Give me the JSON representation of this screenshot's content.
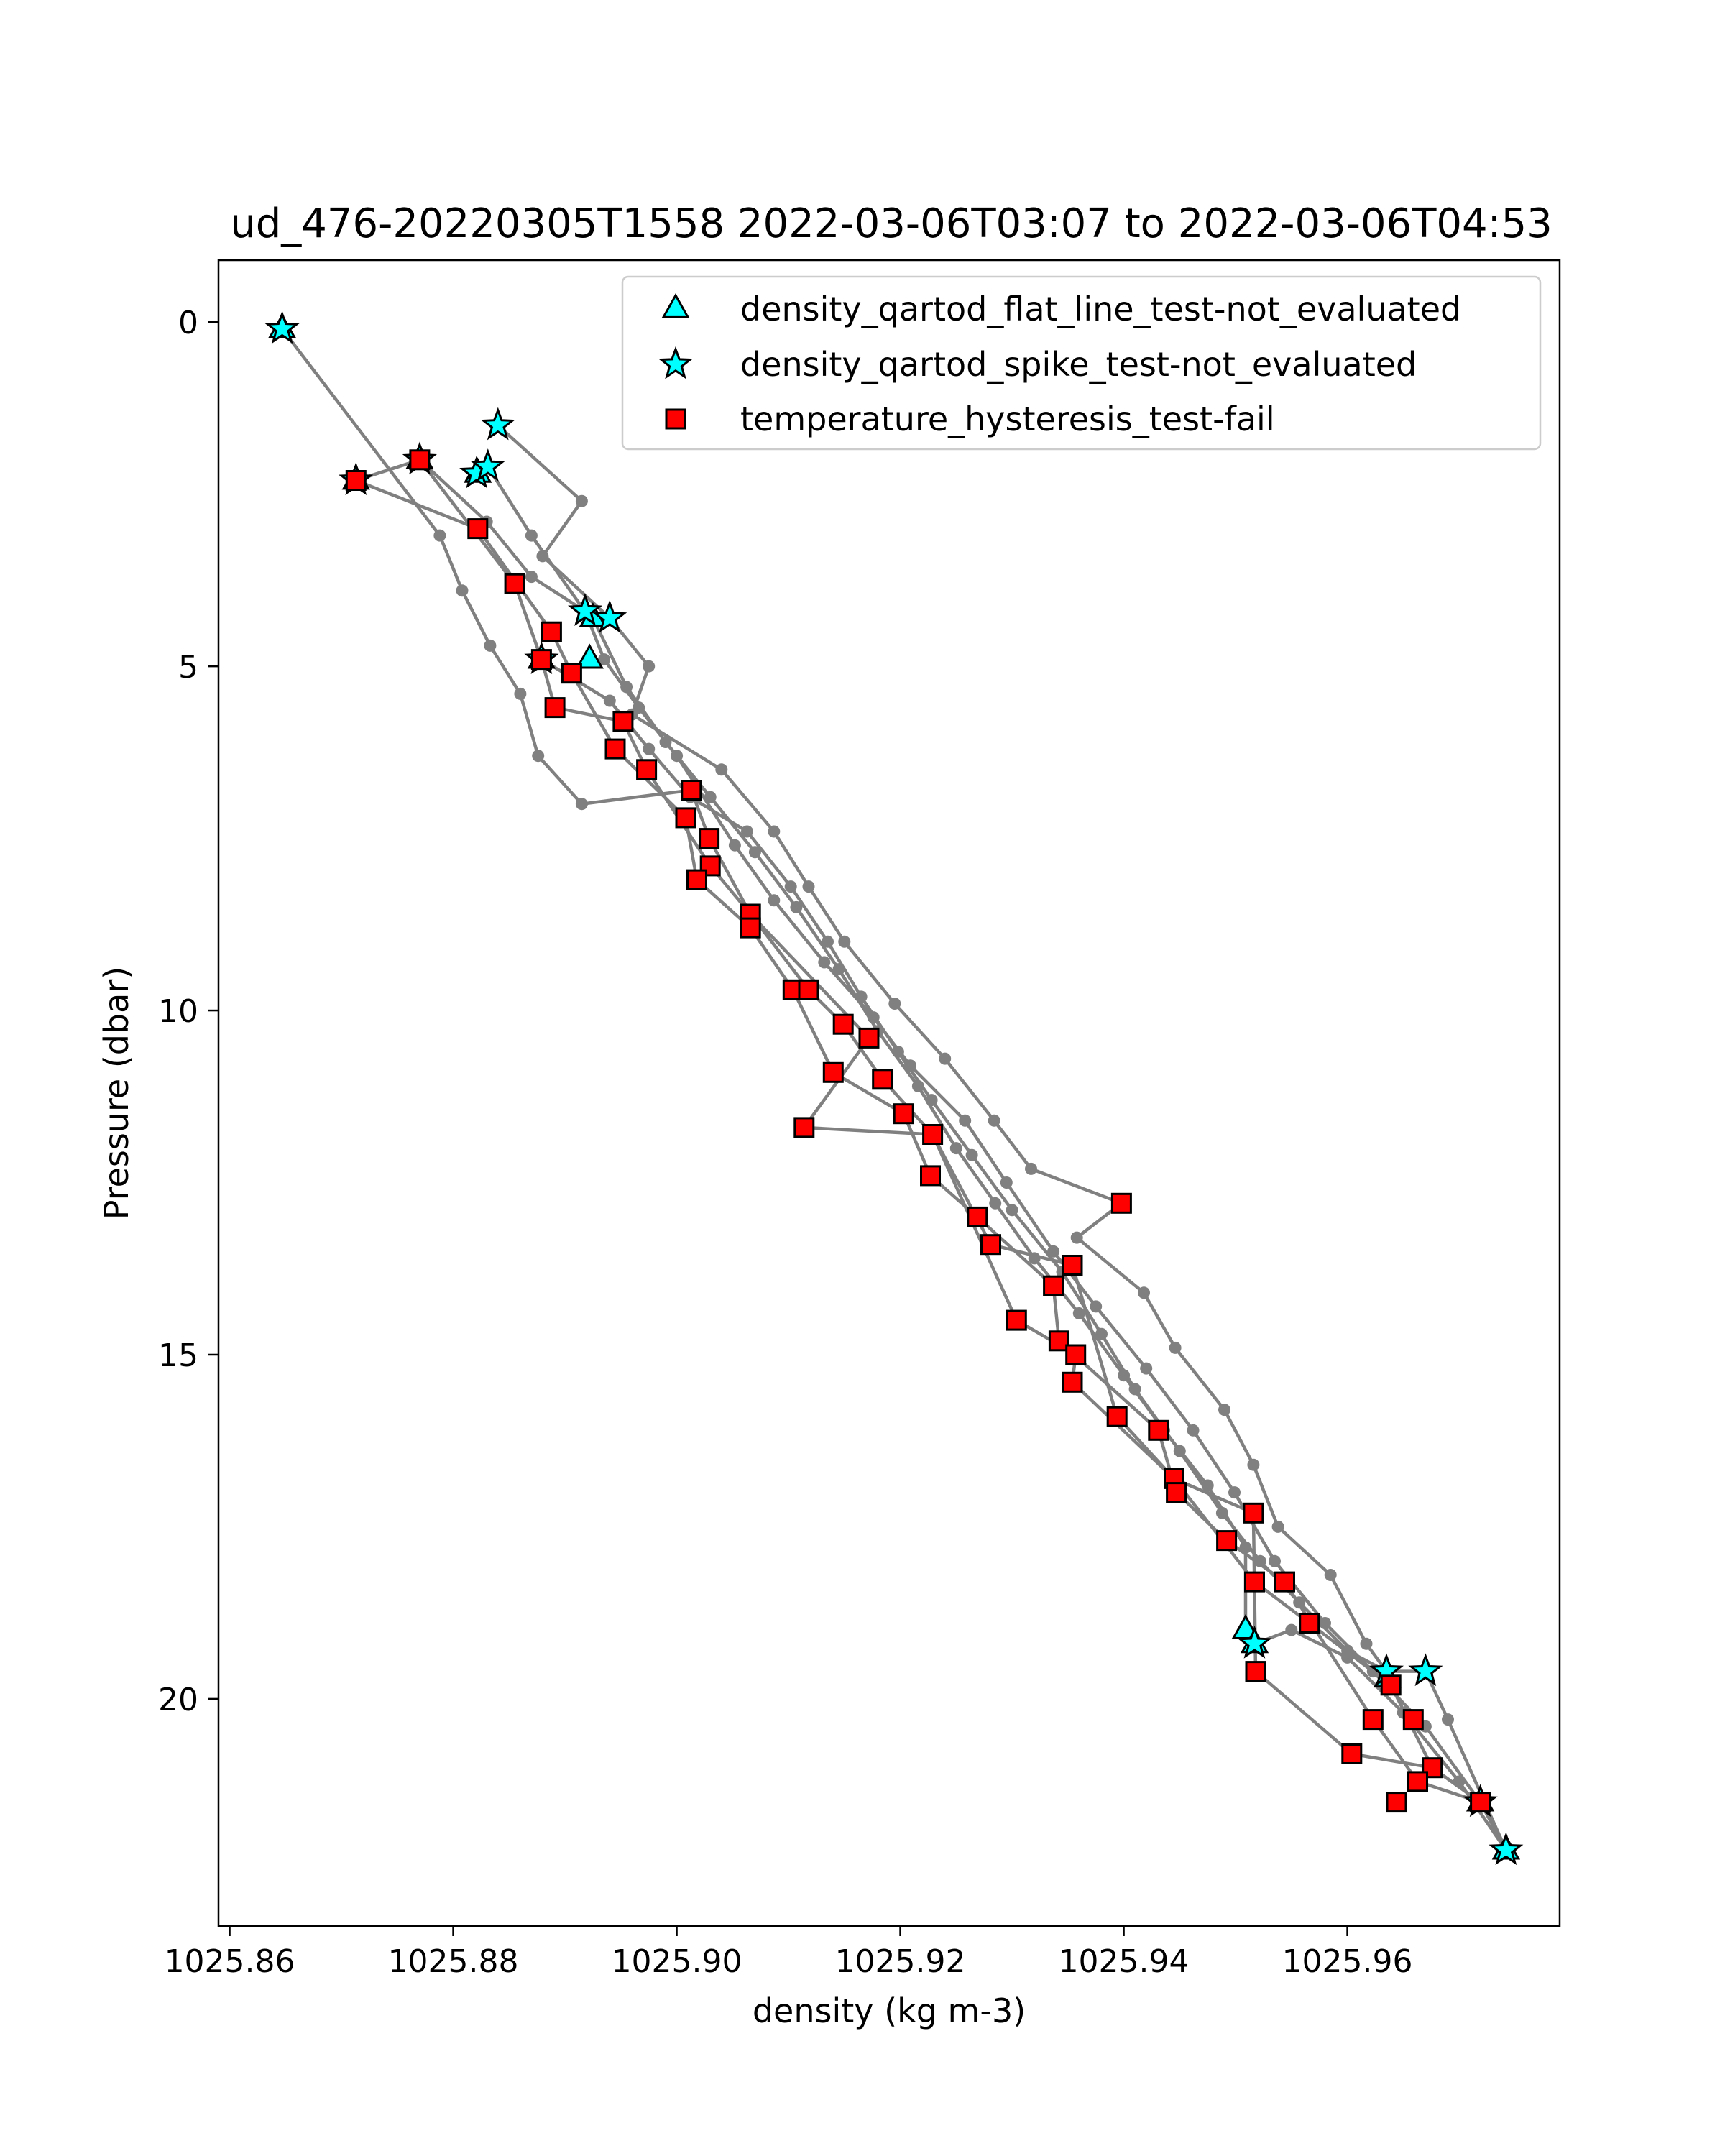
{
  "chart_data": {
    "type": "scatter",
    "title": "ud_476-20220305T1558 2022-03-06T03:07 to 2022-03-06T04:53",
    "xlabel": "density (kg m-3)",
    "ylabel": "Pressure (dbar)",
    "xlim": [
      1025.859,
      1025.979
    ],
    "ylim": [
      23.3,
      -0.9
    ],
    "y_inverted": true,
    "grid": false,
    "legend_position": "top-right",
    "x_ticks": [
      1025.86,
      1025.88,
      1025.9,
      1025.92,
      1025.94,
      1025.96
    ],
    "x_tick_labels": [
      "1025.86",
      "1025.88",
      "1025.90",
      "1025.92",
      "1025.94",
      "1025.96"
    ],
    "y_ticks": [
      0,
      5,
      10,
      15,
      20
    ],
    "y_tick_labels": [
      "0",
      "5",
      "10",
      "15",
      "20"
    ],
    "colors": {
      "line": "#808080",
      "marker_edge": "#000000",
      "flat_line": "#00FFFF",
      "spike": "#00FFFF",
      "hysteresis": "#FF0000"
    },
    "series": [
      {
        "name": "density_qartod_flat_line_test-not_evaluated",
        "marker": "triangle",
        "points": [
          [
            1025.8647,
            0.1
          ],
          [
            1025.8713,
            2.3
          ],
          [
            1025.877,
            2.0
          ],
          [
            1025.8822,
            2.2
          ],
          [
            1025.8879,
            4.9
          ],
          [
            1025.8922,
            4.9
          ],
          [
            1025.8925,
            4.3
          ],
          [
            1025.9509,
            19.0
          ],
          [
            1025.9517,
            19.2
          ],
          [
            1025.9636,
            19.7
          ],
          [
            1025.9719,
            21.5
          ],
          [
            1025.9742,
            22.2
          ]
        ]
      },
      {
        "name": "density_qartod_spike_test-not_evaluated",
        "marker": "star",
        "points": [
          [
            1025.8647,
            0.1
          ],
          [
            1025.884,
            1.5
          ],
          [
            1025.8713,
            2.3
          ],
          [
            1025.877,
            2.0
          ],
          [
            1025.8821,
            2.2
          ],
          [
            1025.8831,
            2.1
          ],
          [
            1025.8918,
            4.2
          ],
          [
            1025.894,
            4.3
          ],
          [
            1025.8879,
            4.9
          ],
          [
            1025.9517,
            19.2
          ],
          [
            1025.9635,
            19.6
          ],
          [
            1025.967,
            19.6
          ],
          [
            1025.9719,
            21.5
          ],
          [
            1025.9742,
            22.2
          ]
        ]
      },
      {
        "name": "temperature_hysteresis_test-fail",
        "marker": "square",
        "points": [
          [
            1025.8713,
            2.3
          ],
          [
            1025.877,
            2.0
          ],
          [
            1025.8822,
            3.0
          ],
          [
            1025.8855,
            3.8
          ],
          [
            1025.8888,
            4.5
          ],
          [
            1025.8879,
            4.9
          ],
          [
            1025.8906,
            5.1
          ],
          [
            1025.8891,
            5.6
          ],
          [
            1025.8952,
            5.8
          ],
          [
            1025.8945,
            6.2
          ],
          [
            1025.8973,
            6.5
          ],
          [
            1025.9013,
            6.8
          ],
          [
            1025.9008,
            7.2
          ],
          [
            1025.9029,
            7.5
          ],
          [
            1025.903,
            7.9
          ],
          [
            1025.9018,
            8.1
          ],
          [
            1025.9066,
            8.6
          ],
          [
            1025.9066,
            8.8
          ],
          [
            1025.9104,
            9.7
          ],
          [
            1025.9118,
            9.7
          ],
          [
            1025.9149,
            10.2
          ],
          [
            1025.9172,
            10.4
          ],
          [
            1025.914,
            10.9
          ],
          [
            1025.9184,
            11.0
          ],
          [
            1025.9203,
            11.5
          ],
          [
            1025.9229,
            11.8
          ],
          [
            1025.9114,
            11.7
          ],
          [
            1025.9227,
            12.4
          ],
          [
            1025.9269,
            13.0
          ],
          [
            1025.9281,
            13.4
          ],
          [
            1025.9398,
            12.8
          ],
          [
            1025.9354,
            13.7
          ],
          [
            1025.9337,
            14.0
          ],
          [
            1025.9304,
            14.5
          ],
          [
            1025.9342,
            14.8
          ],
          [
            1025.9357,
            15.0
          ],
          [
            1025.9354,
            15.4
          ],
          [
            1025.9394,
            15.9
          ],
          [
            1025.9431,
            16.1
          ],
          [
            1025.9445,
            16.8
          ],
          [
            1025.9447,
            17.0
          ],
          [
            1025.9492,
            17.7
          ],
          [
            1025.9516,
            17.3
          ],
          [
            1025.9544,
            18.3
          ],
          [
            1025.9517,
            18.3
          ],
          [
            1025.9566,
            18.9
          ],
          [
            1025.9518,
            19.6
          ],
          [
            1025.9639,
            19.8
          ],
          [
            1025.9623,
            20.3
          ],
          [
            1025.9659,
            20.3
          ],
          [
            1025.9604,
            20.8
          ],
          [
            1025.9676,
            21.0
          ],
          [
            1025.9663,
            21.2
          ],
          [
            1025.9644,
            21.5
          ],
          [
            1025.9719,
            21.5
          ]
        ]
      }
    ],
    "profiles": [
      [
        [
          1025.8647,
          0.1
        ],
        [
          1025.8788,
          3.1
        ],
        [
          1025.8808,
          3.9
        ],
        [
          1025.8833,
          4.7
        ],
        [
          1025.886,
          5.4
        ],
        [
          1025.8876,
          6.3
        ],
        [
          1025.8915,
          7.0
        ],
        [
          1025.9013,
          6.8
        ],
        [
          1025.9029,
          7.5
        ],
        [
          1025.9066,
          8.6
        ],
        [
          1025.9118,
          9.7
        ],
        [
          1025.9149,
          10.2
        ],
        [
          1025.9184,
          11.0
        ],
        [
          1025.9229,
          11.8
        ],
        [
          1025.9281,
          13.4
        ],
        [
          1025.9354,
          13.7
        ],
        [
          1025.9394,
          15.9
        ],
        [
          1025.9445,
          16.8
        ],
        [
          1025.9517,
          18.3
        ],
        [
          1025.9566,
          18.9
        ],
        [
          1025.9639,
          19.8
        ],
        [
          1025.9676,
          21.0
        ],
        [
          1025.9719,
          21.5
        ],
        [
          1025.9742,
          22.2
        ]
      ],
      [
        [
          1025.8713,
          2.3
        ],
        [
          1025.8822,
          3.0
        ],
        [
          1025.8888,
          4.5
        ],
        [
          1025.8906,
          5.1
        ],
        [
          1025.8945,
          6.2
        ],
        [
          1025.9008,
          7.2
        ],
        [
          1025.9018,
          8.1
        ],
        [
          1025.9066,
          8.8
        ],
        [
          1025.9104,
          9.7
        ],
        [
          1025.914,
          10.9
        ],
        [
          1025.9203,
          11.5
        ],
        [
          1025.9227,
          12.4
        ],
        [
          1025.9269,
          13.0
        ],
        [
          1025.9337,
          14.0
        ],
        [
          1025.9342,
          14.8
        ],
        [
          1025.9431,
          16.1
        ],
        [
          1025.9447,
          17.0
        ],
        [
          1025.9492,
          17.7
        ],
        [
          1025.9544,
          18.3
        ],
        [
          1025.9623,
          20.3
        ],
        [
          1025.9663,
          21.2
        ],
        [
          1025.9719,
          21.5
        ]
      ],
      [
        [
          1025.877,
          2.0
        ],
        [
          1025.8855,
          3.8
        ],
        [
          1025.8879,
          4.9
        ],
        [
          1025.8891,
          5.6
        ],
        [
          1025.8952,
          5.8
        ],
        [
          1025.8973,
          6.5
        ],
        [
          1025.903,
          7.9
        ],
        [
          1025.9066,
          8.6
        ],
        [
          1025.9172,
          10.4
        ],
        [
          1025.9114,
          11.7
        ],
        [
          1025.9229,
          11.8
        ],
        [
          1025.9304,
          14.5
        ],
        [
          1025.9357,
          15.0
        ],
        [
          1025.9354,
          15.4
        ],
        [
          1025.9445,
          16.8
        ],
        [
          1025.9516,
          17.3
        ],
        [
          1025.9518,
          19.6
        ],
        [
          1025.9604,
          20.8
        ],
        [
          1025.9676,
          21.0
        ],
        [
          1025.9719,
          21.5
        ]
      ],
      [
        [
          1025.8713,
          2.3
        ],
        [
          1025.877,
          2.0
        ],
        [
          1025.883,
          2.9
        ],
        [
          1025.887,
          3.7
        ],
        [
          1025.8918,
          4.2
        ],
        [
          1025.8935,
          4.9
        ],
        [
          1025.8966,
          5.6
        ],
        [
          1025.9,
          6.3
        ],
        [
          1025.9052,
          7.6
        ],
        [
          1025.9087,
          8.4
        ],
        [
          1025.9132,
          9.3
        ],
        [
          1025.9176,
          10.1
        ],
        [
          1025.9209,
          10.8
        ],
        [
          1025.9258,
          11.6
        ],
        [
          1025.9295,
          12.5
        ],
        [
          1025.9337,
          13.5
        ],
        [
          1025.9375,
          14.3
        ],
        [
          1025.942,
          15.2
        ],
        [
          1025.9462,
          16.1
        ],
        [
          1025.9499,
          17.0
        ],
        [
          1025.9535,
          18.0
        ],
        [
          1025.958,
          18.9
        ],
        [
          1025.9623,
          19.6
        ],
        [
          1025.967,
          20.4
        ],
        [
          1025.9719,
          21.5
        ]
      ],
      [
        [
          1025.884,
          1.5
        ],
        [
          1025.8915,
          2.6
        ],
        [
          1025.888,
          3.4
        ],
        [
          1025.894,
          4.3
        ],
        [
          1025.8975,
          5.0
        ],
        [
          1025.896,
          5.7
        ],
        [
          1025.904,
          6.5
        ],
        [
          1025.9087,
          7.4
        ],
        [
          1025.9118,
          8.2
        ],
        [
          1025.915,
          9.0
        ],
        [
          1025.9195,
          9.9
        ],
        [
          1025.924,
          10.7
        ],
        [
          1025.9284,
          11.6
        ],
        [
          1025.9317,
          12.3
        ],
        [
          1025.9398,
          12.8
        ],
        [
          1025.9358,
          13.3
        ],
        [
          1025.9418,
          14.1
        ],
        [
          1025.9446,
          14.9
        ],
        [
          1025.949,
          15.8
        ],
        [
          1025.9516,
          16.6
        ],
        [
          1025.9538,
          17.5
        ],
        [
          1025.9585,
          18.2
        ],
        [
          1025.9617,
          19.2
        ],
        [
          1025.9635,
          19.6
        ],
        [
          1025.967,
          19.6
        ],
        [
          1025.969,
          20.3
        ],
        [
          1025.9742,
          22.2
        ]
      ],
      [
        [
          1025.8822,
          2.2
        ],
        [
          1025.8831,
          2.1
        ],
        [
          1025.887,
          3.1
        ],
        [
          1025.8922,
          4.3
        ],
        [
          1025.8925,
          4.3
        ],
        [
          1025.8955,
          5.3
        ],
        [
          1025.899,
          6.1
        ],
        [
          1025.903,
          6.9
        ],
        [
          1025.907,
          7.7
        ],
        [
          1025.9107,
          8.5
        ],
        [
          1025.9145,
          9.4
        ],
        [
          1025.918,
          10.3
        ],
        [
          1025.9216,
          11.1
        ],
        [
          1025.925,
          12.0
        ],
        [
          1025.9285,
          12.8
        ],
        [
          1025.932,
          13.6
        ],
        [
          1025.936,
          14.4
        ],
        [
          1025.94,
          15.3
        ],
        [
          1025.9436,
          16.1
        ],
        [
          1025.9475,
          16.9
        ],
        [
          1025.9509,
          17.8
        ],
        [
          1025.9509,
          19.0
        ],
        [
          1025.9517,
          19.2
        ],
        [
          1025.955,
          19.0
        ],
        [
          1025.96,
          19.4
        ],
        [
          1025.965,
          20.2
        ],
        [
          1025.97,
          21.2
        ],
        [
          1025.9742,
          22.2
        ]
      ],
      [
        [
          1025.8879,
          4.9
        ],
        [
          1025.894,
          5.5
        ],
        [
          1025.8975,
          6.2
        ],
        [
          1025.9012,
          6.9
        ],
        [
          1025.9063,
          7.4
        ],
        [
          1025.9102,
          8.2
        ],
        [
          1025.9135,
          9.0
        ],
        [
          1025.9165,
          9.8
        ],
        [
          1025.9198,
          10.6
        ],
        [
          1025.9228,
          11.3
        ],
        [
          1025.9264,
          12.1
        ],
        [
          1025.93,
          12.9
        ],
        [
          1025.9345,
          13.8
        ],
        [
          1025.938,
          14.7
        ],
        [
          1025.941,
          15.5
        ],
        [
          1025.945,
          16.4
        ],
        [
          1025.9488,
          17.3
        ],
        [
          1025.9522,
          18.0
        ],
        [
          1025.9557,
          18.6
        ],
        [
          1025.96,
          19.3
        ],
        [
          1025.9635,
          19.6
        ]
      ]
    ]
  }
}
